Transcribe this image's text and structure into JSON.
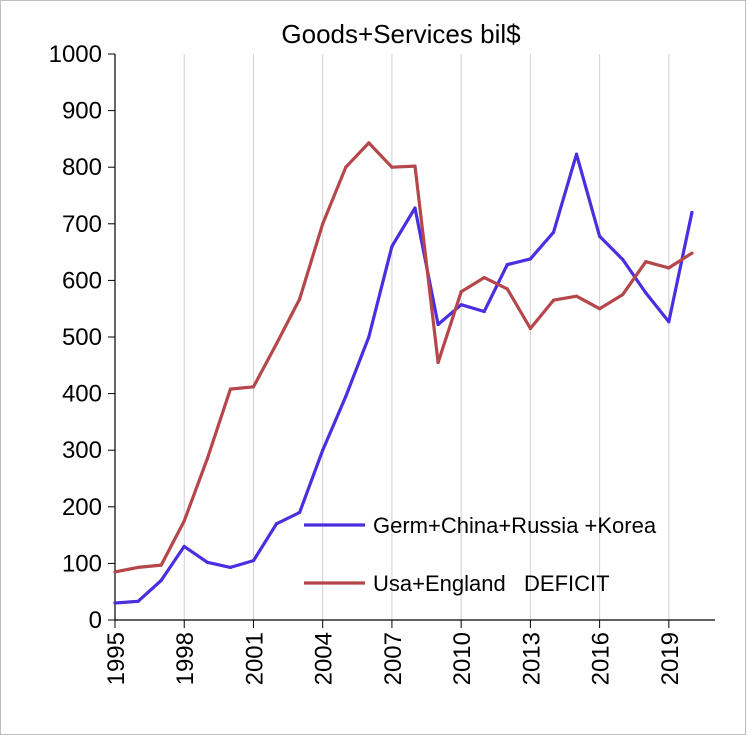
{
  "chart_data": {
    "type": "line",
    "title": "Goods+Services  bil$",
    "xlabel": "",
    "ylabel": "",
    "xlim": [
      1995,
      2021
    ],
    "ylim": [
      0,
      1000
    ],
    "y_ticks": [
      0,
      100,
      200,
      300,
      400,
      500,
      600,
      700,
      800,
      900,
      1000
    ],
    "x_tick_labels": [
      "1995",
      "1998",
      "2001",
      "2004",
      "2007",
      "2010",
      "2013",
      "2016",
      "2019"
    ],
    "grid": "vertical",
    "legend_position": "bottom-right",
    "x": [
      1995,
      1996,
      1997,
      1998,
      1999,
      2000,
      2001,
      2002,
      2003,
      2004,
      2005,
      2006,
      2007,
      2008,
      2009,
      2010,
      2011,
      2012,
      2013,
      2014,
      2015,
      2016,
      2017,
      2018,
      2019,
      2020
    ],
    "series": [
      {
        "name": "Germ+China+Russia +Korea",
        "color": "#4a2ee0",
        "values": [
          30,
          33,
          70,
          130,
          102,
          93,
          105,
          170,
          190,
          300,
          395,
          500,
          660,
          728,
          522,
          557,
          545,
          628,
          638,
          685,
          823,
          678,
          637,
          578,
          527,
          720
        ]
      },
      {
        "name": "Usa+England   DEFICIT",
        "color": "#b5464a",
        "values": [
          85,
          93,
          97,
          175,
          285,
          408,
          412,
          488,
          567,
          700,
          800,
          843,
          800,
          802,
          455,
          580,
          605,
          585,
          515,
          565,
          572,
          550,
          575,
          633,
          622,
          648
        ]
      }
    ]
  }
}
